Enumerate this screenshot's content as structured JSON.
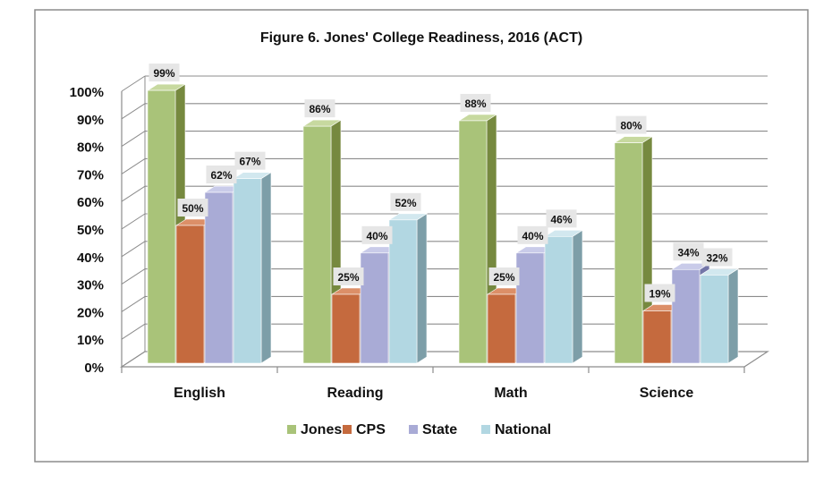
{
  "chart_data": {
    "type": "bar",
    "title": "Figure 6. Jones' College Readiness, 2016 (ACT)",
    "categories": [
      "English",
      "Reading",
      "Math",
      "Science"
    ],
    "series": [
      {
        "name": "Jones",
        "values": [
          99,
          86,
          88,
          80
        ],
        "labels": [
          "99%",
          "86%",
          "88%",
          "80%"
        ],
        "color": "#a9c379",
        "side": "#76893f",
        "top": "#c7d99f"
      },
      {
        "name": "CPS",
        "values": [
          50,
          25,
          25,
          19
        ],
        "labels": [
          "50%",
          "25%",
          "25%",
          "19%"
        ],
        "color": "#c56a3e",
        "side": "#8d4626",
        "top": "#dc8f68"
      },
      {
        "name": "State",
        "values": [
          62,
          40,
          40,
          34
        ],
        "labels": [
          "62%",
          "40%",
          "40%",
          "34%"
        ],
        "color": "#a9abd6",
        "side": "#7476a8",
        "top": "#c9cbe9"
      },
      {
        "name": "National",
        "values": [
          67,
          52,
          46,
          32
        ],
        "labels": [
          "67%",
          "52%",
          "46%",
          "32%"
        ],
        "color": "#b2d7e2",
        "side": "#7d9ea8",
        "top": "#d2e8ef"
      }
    ],
    "ylim": [
      0,
      100
    ],
    "yticks": [
      "0%",
      "10%",
      "20%",
      "30%",
      "40%",
      "50%",
      "60%",
      "70%",
      "80%",
      "90%",
      "100%"
    ],
    "grid": true,
    "legend_position": "bottom"
  }
}
